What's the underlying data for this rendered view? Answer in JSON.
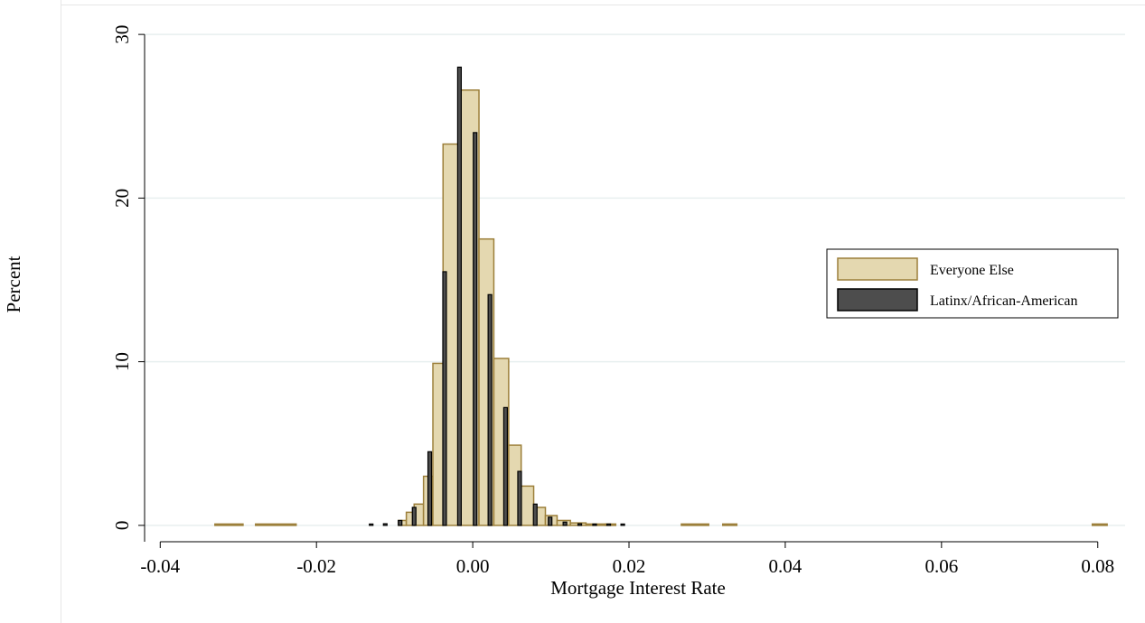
{
  "chart_data": {
    "type": "bar",
    "subtype": "overlaid-histogram",
    "xlabel": "Mortgage Interest Rate",
    "ylabel": "Percent",
    "xlim": [
      -0.042,
      0.0835
    ],
    "ylim": [
      -1.0,
      31.0
    ],
    "xticks": [
      -0.04,
      -0.02,
      0.0,
      0.02,
      0.04,
      0.06,
      0.08
    ],
    "xtick_labels": [
      "-0.04",
      "-0.02",
      "0.00",
      "0.02",
      "0.04",
      "0.06",
      "0.08"
    ],
    "yticks": [
      0,
      10,
      20,
      30
    ],
    "ytick_labels": [
      "0",
      "10",
      "20",
      "30"
    ],
    "grid": "horizontal",
    "legend_position": "right",
    "series": [
      {
        "name": "Everyone Else",
        "fill": "#e4d8b0",
        "stroke": "#9c7f3a",
        "bars": [
          {
            "x0": -0.033,
            "x1": -0.0294,
            "value": 0.05
          },
          {
            "x0": -0.0278,
            "x1": -0.0226,
            "value": 0.05
          },
          {
            "x0": -0.0095,
            "x1": -0.0085,
            "value": 0.3
          },
          {
            "x0": -0.0085,
            "x1": -0.0075,
            "value": 0.8
          },
          {
            "x0": -0.0075,
            "x1": -0.0063,
            "value": 1.3
          },
          {
            "x0": -0.0063,
            "x1": -0.0051,
            "value": 3.0
          },
          {
            "x0": -0.0051,
            "x1": -0.0038,
            "value": 9.9
          },
          {
            "x0": -0.0038,
            "x1": -0.0015,
            "value": 23.3
          },
          {
            "x0": -0.0015,
            "x1": 0.0008,
            "value": 26.6
          },
          {
            "x0": 0.0008,
            "x1": 0.0027,
            "value": 17.5
          },
          {
            "x0": 0.0027,
            "x1": 0.0046,
            "value": 10.2
          },
          {
            "x0": 0.0046,
            "x1": 0.0062,
            "value": 4.9
          },
          {
            "x0": 0.0062,
            "x1": 0.0078,
            "value": 2.4
          },
          {
            "x0": 0.0078,
            "x1": 0.0093,
            "value": 1.1
          },
          {
            "x0": 0.0093,
            "x1": 0.0108,
            "value": 0.6
          },
          {
            "x0": 0.0108,
            "x1": 0.0125,
            "value": 0.3
          },
          {
            "x0": 0.0125,
            "x1": 0.0145,
            "value": 0.15
          },
          {
            "x0": 0.0145,
            "x1": 0.017,
            "value": 0.08
          },
          {
            "x0": 0.017,
            "x1": 0.0183,
            "value": 0.05
          },
          {
            "x0": 0.0267,
            "x1": 0.0302,
            "value": 0.05
          },
          {
            "x0": 0.032,
            "x1": 0.0338,
            "value": 0.05
          },
          {
            "x0": 0.0793,
            "x1": 0.0812,
            "value": 0.05
          }
        ]
      },
      {
        "name": "Latinx/African-American",
        "fill": "#4d4d4d",
        "stroke": "#000000",
        "bars": [
          {
            "x": -0.013,
            "value": 0.05
          },
          {
            "x": -0.0112,
            "value": 0.1
          },
          {
            "x": -0.0093,
            "value": 0.3
          },
          {
            "x": -0.0075,
            "value": 1.1
          },
          {
            "x": -0.0055,
            "value": 4.5
          },
          {
            "x": -0.0036,
            "value": 15.5
          },
          {
            "x": -0.0017,
            "value": 28.0
          },
          {
            "x": 0.0003,
            "value": 24.0
          },
          {
            "x": 0.0022,
            "value": 14.1
          },
          {
            "x": 0.0042,
            "value": 7.2
          },
          {
            "x": 0.006,
            "value": 3.3
          },
          {
            "x": 0.008,
            "value": 1.3
          },
          {
            "x": 0.0099,
            "value": 0.5
          },
          {
            "x": 0.0118,
            "value": 0.2
          },
          {
            "x": 0.0137,
            "value": 0.1
          },
          {
            "x": 0.0156,
            "value": 0.05
          },
          {
            "x": 0.0174,
            "value": 0.05
          },
          {
            "x": 0.0192,
            "value": 0.05
          }
        ]
      }
    ]
  }
}
